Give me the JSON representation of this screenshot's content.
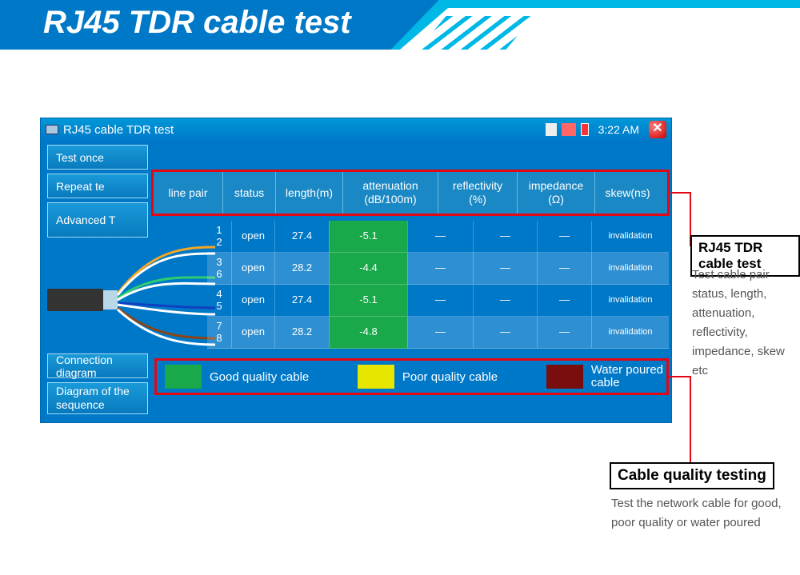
{
  "banner": {
    "title": "RJ45 TDR cable test"
  },
  "titlebar": {
    "title": "RJ45 cable TDR test",
    "clock": "3:22 AM"
  },
  "sidebar": {
    "b1": "Test once",
    "b2": "Repeat te",
    "b3": "Advanced T",
    "b4": "Connection diagram",
    "b5": "Diagram of the sequence"
  },
  "columns": {
    "c0": "line pair",
    "c1": "status",
    "c2": "length(m)",
    "c3a": "attenuation",
    "c3b": "(dB/100m)",
    "c4a": "reflectivity",
    "c4b": "(%)",
    "c5a": "impedance",
    "c5b": "(Ω)",
    "c6": "skew(ns)"
  },
  "col_widths": {
    "c0": 86,
    "c1": 66,
    "c2": 84,
    "c3": 119,
    "c4": 99,
    "c5": 97,
    "c6": 82
  },
  "tbl_widths": {
    "c0": 30,
    "c1": 54,
    "c2": 68,
    "c3": 98,
    "c4": 82,
    "c5": 80,
    "c6": 68,
    "c7": 97
  },
  "rows": [
    {
      "pair_a": "1",
      "pair_b": "2",
      "status": "open",
      "length": "27.4",
      "atten": "-5.1",
      "refl": "—",
      "imp": "—",
      "skew": "—",
      "extra": "invalidation"
    },
    {
      "pair_a": "3",
      "pair_b": "6",
      "status": "open",
      "length": "28.2",
      "atten": "-4.4",
      "refl": "—",
      "imp": "—",
      "skew": "—",
      "extra": "invalidation"
    },
    {
      "pair_a": "4",
      "pair_b": "5",
      "status": "open",
      "length": "27.4",
      "atten": "-5.1",
      "refl": "—",
      "imp": "—",
      "skew": "—",
      "extra": "invalidation"
    },
    {
      "pair_a": "7",
      "pair_b": "8",
      "status": "open",
      "length": "28.2",
      "atten": "-4.8",
      "refl": "—",
      "imp": "—",
      "skew": "—",
      "extra": "invalidation"
    }
  ],
  "legend": {
    "good": {
      "color": "#1aa94a",
      "label": "Good quality cable"
    },
    "poor": {
      "color": "#e6e600",
      "label": "Poor quality cable"
    },
    "water": {
      "color": "#7a0e0e",
      "label_a": "Water poured",
      "label_b": "cable"
    }
  },
  "callout1": {
    "title": "RJ45 TDR cable test",
    "desc": "Test cable pair status, length, attenuation, reflectivity, impedance, skew etc"
  },
  "callout2": {
    "title": "Cable quality testing",
    "desc": "Test the network cable for good, poor quality or water poured"
  },
  "colors": {
    "banner_blue": "#0078c8",
    "banner_cyan": "#00b8e6",
    "accent_red": "#e30613",
    "table_alt": "rgba(255,255,255,0.18)",
    "atten_green": "#1aa94a"
  }
}
